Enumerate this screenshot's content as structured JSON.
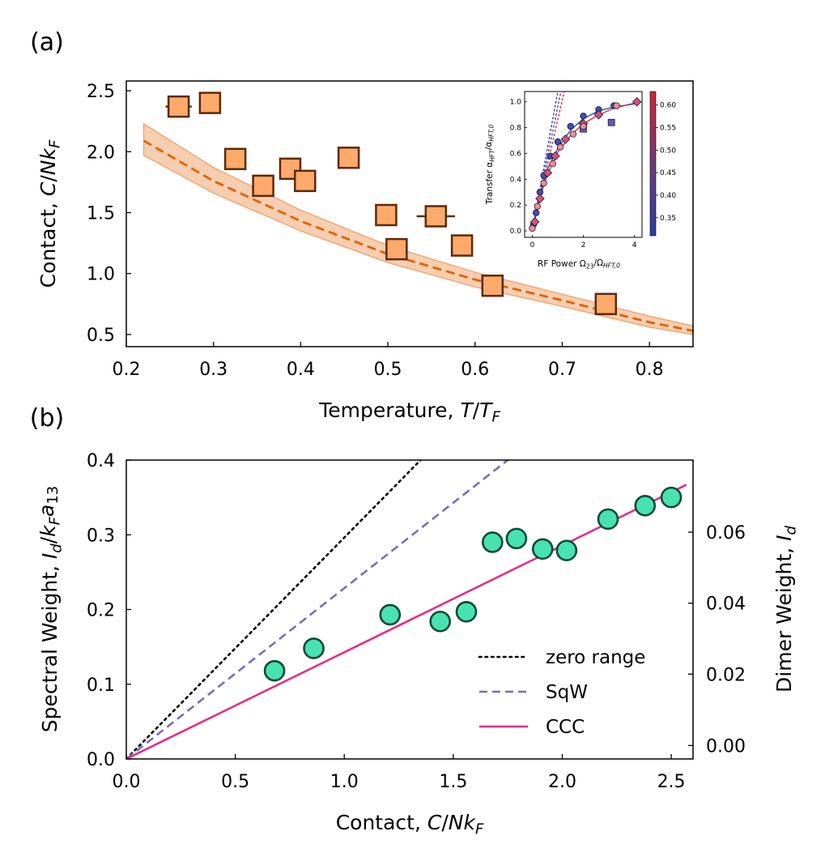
{
  "chart_data": [
    {
      "panel_label": "(a)",
      "type": "scatter",
      "xlabel": "Temperature, T/T_F",
      "ylabel": "Contact, C/Nk_F",
      "xlim": [
        0.2,
        0.85
      ],
      "ylim": [
        0.4,
        2.58
      ],
      "xticks": [
        "0.2",
        "0.3",
        "0.4",
        "0.5",
        "0.6",
        "0.7",
        "0.8"
      ],
      "yticks": [
        "0.5",
        "1.0",
        "1.5",
        "2.0",
        "2.5"
      ],
      "colors": {
        "marker": "#fdaa6b",
        "edge": "#5a2a0a",
        "line": "#e06200",
        "band": "#f4b98e"
      },
      "series": [
        {
          "kind": "markers",
          "points": [
            {
              "x": 0.26,
              "y": 2.37,
              "xerr": 0.015
            },
            {
              "x": 0.296,
              "y": 2.4,
              "xerr": 0
            },
            {
              "x": 0.325,
              "y": 1.94,
              "xerr": 0
            },
            {
              "x": 0.357,
              "y": 1.72,
              "xerr": 0
            },
            {
              "x": 0.388,
              "y": 1.86,
              "xerr": 0
            },
            {
              "x": 0.405,
              "y": 1.76,
              "xerr": 0
            },
            {
              "x": 0.455,
              "y": 1.95,
              "xerr": 0
            },
            {
              "x": 0.498,
              "y": 1.48,
              "xerr": 0
            },
            {
              "x": 0.51,
              "y": 1.2,
              "xerr": 0
            },
            {
              "x": 0.555,
              "y": 1.47,
              "xerr": 0.022
            },
            {
              "x": 0.585,
              "y": 1.23,
              "xerr": 0
            },
            {
              "x": 0.62,
              "y": 0.9,
              "xerr": 0
            },
            {
              "x": 0.75,
              "y": 0.75,
              "xerr": 0
            }
          ]
        },
        {
          "kind": "theory",
          "x": [
            0.22,
            0.3,
            0.4,
            0.5,
            0.6,
            0.7,
            0.8,
            0.85
          ],
          "y": [
            2.09,
            1.76,
            1.43,
            1.16,
            0.95,
            0.78,
            0.6,
            0.53
          ],
          "band_low": [
            1.97,
            1.66,
            1.35,
            1.09,
            0.89,
            0.73,
            0.56,
            0.5
          ],
          "band_high": [
            2.23,
            1.87,
            1.52,
            1.23,
            1.01,
            0.83,
            0.65,
            0.57
          ]
        }
      ],
      "inset": {
        "xlabel": "RF Power Ω23/ΩHFT,0",
        "ylabel": "Transfer αHFT/αHFT,0",
        "xlim": [
          -0.3,
          4.3
        ],
        "ylim": [
          -0.05,
          1.08
        ],
        "xticks": [
          "0",
          "2",
          "4"
        ],
        "yticks": [
          "0.0",
          "0.2",
          "0.4",
          "0.6",
          "0.8",
          "1.0"
        ],
        "colorbar_ticks": [
          "0.35",
          "0.40",
          "0.45",
          "0.50",
          "0.55",
          "0.60"
        ],
        "colorbar_range": [
          0.31,
          0.63
        ],
        "colors": {
          "low": "#2a3e9e",
          "mid": "#703a78",
          "high": "#cc2636"
        },
        "series": [
          {
            "color": "#3f4ea8",
            "marker": "circle",
            "points": [
              [
                0.05,
                0.05
              ],
              [
                0.15,
                0.14
              ],
              [
                0.3,
                0.3
              ],
              [
                0.45,
                0.43
              ],
              [
                0.7,
                0.58
              ],
              [
                1.0,
                0.69
              ],
              [
                1.5,
                0.81
              ],
              [
                2.0,
                0.89
              ],
              [
                2.6,
                0.94
              ],
              [
                3.2,
                0.97
              ]
            ]
          },
          {
            "color": "#6a58b2",
            "marker": "square",
            "points": [
              [
                2.0,
                0.79
              ],
              [
                3.1,
                0.84
              ]
            ]
          },
          {
            "color": "#d8507a",
            "marker": "diamond",
            "points": [
              [
                0.1,
                0.07
              ],
              [
                0.3,
                0.25
              ],
              [
                0.6,
                0.45
              ],
              [
                0.9,
                0.58
              ],
              [
                1.3,
                0.71
              ],
              [
                2.0,
                0.83
              ],
              [
                2.6,
                0.9
              ],
              [
                4.1,
                1.0
              ]
            ]
          },
          {
            "color": "#f28d93",
            "marker": "circle",
            "points": [
              [
                0.0,
                0.02
              ],
              [
                0.2,
                0.19
              ],
              [
                0.45,
                0.37
              ],
              [
                0.8,
                0.52
              ],
              [
                1.1,
                0.65
              ],
              [
                1.6,
                0.75
              ],
              [
                2.0,
                0.81
              ],
              [
                3.3,
                0.97
              ]
            ]
          }
        ],
        "dashed_lines": [
          {
            "color": "#2a3e9e",
            "x": [
              0,
              1.0
            ],
            "y": [
              0,
              1.08
            ]
          },
          {
            "color": "#5a3c8a",
            "x": [
              0,
              1.12
            ],
            "y": [
              0,
              1.08
            ]
          },
          {
            "color": "#cc2636",
            "x": [
              0,
              1.25
            ],
            "y": [
              0,
              1.08
            ]
          }
        ],
        "fit_lines": [
          {
            "color": "#2a3e9e",
            "x": [
              0,
              0.3,
              0.6,
              1.0,
              1.5,
              2.0,
              2.6,
              3.2,
              4.2
            ],
            "y": [
              0,
              0.29,
              0.48,
              0.64,
              0.78,
              0.87,
              0.93,
              0.96,
              0.99
            ]
          },
          {
            "color": "#cc2636",
            "x": [
              0,
              0.3,
              0.6,
              1.0,
              1.5,
              2.0,
              2.6,
              3.2,
              4.2
            ],
            "y": [
              0,
              0.26,
              0.44,
              0.61,
              0.74,
              0.83,
              0.9,
              0.95,
              1.0
            ]
          }
        ]
      }
    },
    {
      "panel_label": "(b)",
      "type": "scatter",
      "xlabel": "Contact, C/Nk_F",
      "ylabel": "Spectral Weight, I_d/k_F a_13",
      "y2label": "Dimer Weight, I_d",
      "xlim": [
        0,
        2.6
      ],
      "ylim": [
        0,
        0.4
      ],
      "xticks": [
        "0.0",
        "0.5",
        "1.0",
        "1.5",
        "2.0",
        "2.5"
      ],
      "yticks": [
        "0.0",
        "0.1",
        "0.2",
        "0.3",
        "0.4"
      ],
      "y2ticks": [
        "0.00",
        "0.02",
        "0.04",
        "0.06"
      ],
      "y2_at_left_ticks": {
        "0.00": 0.018,
        "0.02": 0.1135,
        "0.04": 0.2085,
        "0.06": 0.3035
      },
      "colors": {
        "marker": "#48e2b0",
        "edge": "#0c4a34"
      },
      "legend_position": "lower-right",
      "legend": [
        "zero range",
        "SqW",
        "CCC"
      ],
      "lines": [
        {
          "name": "zero range",
          "style": "dotted",
          "color": "#000000",
          "x": [
            0,
            1.35
          ],
          "y": [
            0,
            0.4
          ]
        },
        {
          "name": "SqW",
          "style": "dashed",
          "color": "#7670b2",
          "x": [
            0,
            1.75
          ],
          "y": [
            0,
            0.4
          ]
        },
        {
          "name": "CCC",
          "style": "solid",
          "color": "#e22f88",
          "x": [
            0,
            2.57
          ],
          "y": [
            0,
            0.367
          ]
        }
      ],
      "points": [
        {
          "x": 0.68,
          "y": 0.118,
          "yerr": 0.005
        },
        {
          "x": 0.86,
          "y": 0.148,
          "yerr": 0.005
        },
        {
          "x": 1.21,
          "y": 0.193,
          "yerr": 0.005
        },
        {
          "x": 1.44,
          "y": 0.184,
          "yerr": 0.005
        },
        {
          "x": 1.56,
          "y": 0.197,
          "yerr": 0.005
        },
        {
          "x": 1.68,
          "y": 0.29,
          "yerr": 0.013
        },
        {
          "x": 1.79,
          "y": 0.295,
          "yerr": 0.01
        },
        {
          "x": 1.91,
          "y": 0.281,
          "yerr": 0.013
        },
        {
          "x": 2.02,
          "y": 0.279,
          "yerr": 0.007
        },
        {
          "x": 2.21,
          "y": 0.321,
          "yerr": 0.012
        },
        {
          "x": 2.38,
          "y": 0.339,
          "yerr": 0.007
        },
        {
          "x": 2.5,
          "y": 0.35,
          "yerr": 0.007
        }
      ]
    }
  ]
}
